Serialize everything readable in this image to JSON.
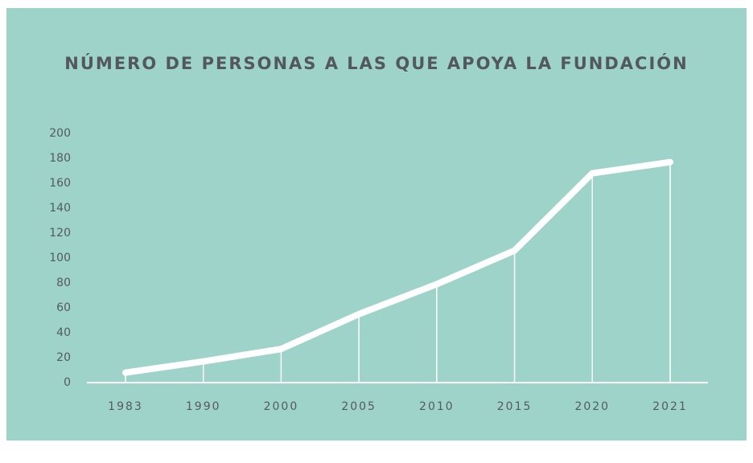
{
  "chart_data": {
    "type": "line",
    "title": "NÚMERO DE PERSONAS A LAS QUE APOYA LA FUNDACIÓN",
    "categories": [
      "1983",
      "1990",
      "2000",
      "2005",
      "2010",
      "2015",
      "2020",
      "2021"
    ],
    "values": [
      8,
      17,
      27,
      55,
      79,
      106,
      168,
      177
    ],
    "color": "#ffffff",
    "ylim": [
      0,
      200
    ],
    "yticks": [
      0,
      20,
      40,
      60,
      80,
      100,
      120,
      140,
      160,
      180,
      200
    ],
    "grid": false
  }
}
